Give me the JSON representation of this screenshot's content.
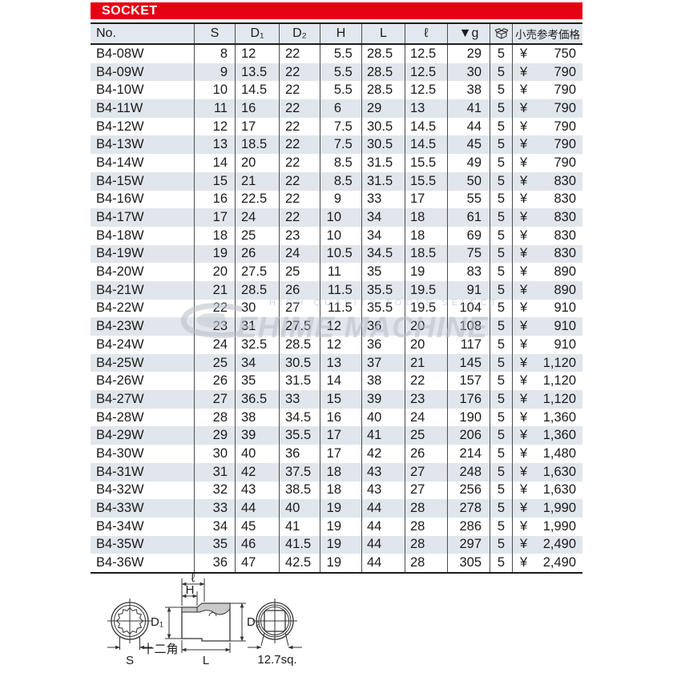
{
  "title_bar": {
    "label": "SOCKET"
  },
  "colors": {
    "accent_red": "#e60014",
    "row_shade": "#e0e6ec",
    "header_shade": "#e2e8ee"
  },
  "table": {
    "yen": "¥",
    "columns": [
      {
        "key": "no",
        "label": "No."
      },
      {
        "key": "s",
        "label": "S"
      },
      {
        "key": "d1",
        "label": "D₁"
      },
      {
        "key": "d2",
        "label": "D₂"
      },
      {
        "key": "h",
        "label": "H"
      },
      {
        "key": "l",
        "label": "L"
      },
      {
        "key": "ell",
        "label": "ℓ"
      },
      {
        "key": "g",
        "label": "▼g"
      },
      {
        "key": "qty",
        "label": "",
        "icon": "package-icon"
      },
      {
        "key": "price",
        "label": "小売参考価格"
      }
    ],
    "rows": [
      [
        "B4-08W",
        "8",
        "12",
        "22",
        "5.5",
        "28.5",
        "12.5",
        "29",
        "5",
        "750"
      ],
      [
        "B4-09W",
        "9",
        "13.5",
        "22",
        "5.5",
        "28.5",
        "12.5",
        "30",
        "5",
        "790"
      ],
      [
        "B4-10W",
        "10",
        "14.5",
        "22",
        "5.5",
        "28.5",
        "12.5",
        "38",
        "5",
        "790"
      ],
      [
        "B4-11W",
        "11",
        "16",
        "22",
        "6",
        "29",
        "13",
        "41",
        "5",
        "790"
      ],
      [
        "B4-12W",
        "12",
        "17",
        "22",
        "7.5",
        "30.5",
        "14.5",
        "44",
        "5",
        "790"
      ],
      [
        "B4-13W",
        "13",
        "18.5",
        "22",
        "7.5",
        "30.5",
        "14.5",
        "45",
        "5",
        "790"
      ],
      [
        "B4-14W",
        "14",
        "20",
        "22",
        "8.5",
        "31.5",
        "15.5",
        "49",
        "5",
        "790"
      ],
      [
        "B4-15W",
        "15",
        "21",
        "22",
        "8.5",
        "31.5",
        "15.5",
        "50",
        "5",
        "830"
      ],
      [
        "B4-16W",
        "16",
        "22.5",
        "22",
        "9",
        "33",
        "17",
        "55",
        "5",
        "830"
      ],
      [
        "B4-17W",
        "17",
        "24",
        "22",
        "10",
        "34",
        "18",
        "61",
        "5",
        "830"
      ],
      [
        "B4-18W",
        "18",
        "25",
        "23",
        "10",
        "34",
        "18",
        "69",
        "5",
        "830"
      ],
      [
        "B4-19W",
        "19",
        "26",
        "24",
        "10.5",
        "34.5",
        "18.5",
        "75",
        "5",
        "830"
      ],
      [
        "B4-20W",
        "20",
        "27.5",
        "25",
        "11",
        "35",
        "19",
        "83",
        "5",
        "890"
      ],
      [
        "B4-21W",
        "21",
        "28.5",
        "26",
        "11.5",
        "35.5",
        "19.5",
        "91",
        "5",
        "890"
      ],
      [
        "B4-22W",
        "22",
        "30",
        "27",
        "11.5",
        "35.5",
        "19.5",
        "104",
        "5",
        "910"
      ],
      [
        "B4-23W",
        "23",
        "31",
        "27.5",
        "12",
        "36",
        "20",
        "108",
        "5",
        "910"
      ],
      [
        "B4-24W",
        "24",
        "32.5",
        "28.5",
        "12",
        "36",
        "20",
        "117",
        "5",
        "910"
      ],
      [
        "B4-25W",
        "25",
        "34",
        "30.5",
        "13",
        "37",
        "21",
        "145",
        "5",
        "1,120"
      ],
      [
        "B4-26W",
        "26",
        "35",
        "31.5",
        "14",
        "38",
        "22",
        "157",
        "5",
        "1,120"
      ],
      [
        "B4-27W",
        "27",
        "36.5",
        "33",
        "15",
        "39",
        "23",
        "176",
        "5",
        "1,120"
      ],
      [
        "B4-28W",
        "28",
        "38",
        "34.5",
        "16",
        "40",
        "24",
        "190",
        "5",
        "1,360"
      ],
      [
        "B4-29W",
        "29",
        "39",
        "35.5",
        "17",
        "41",
        "25",
        "206",
        "5",
        "1,360"
      ],
      [
        "B4-30W",
        "30",
        "40",
        "36",
        "17",
        "42",
        "26",
        "214",
        "5",
        "1,480"
      ],
      [
        "B4-31W",
        "31",
        "42",
        "37.5",
        "18",
        "43",
        "27",
        "248",
        "5",
        "1,630"
      ],
      [
        "B4-32W",
        "32",
        "43",
        "38.5",
        "18",
        "43",
        "27",
        "256",
        "5",
        "1,630"
      ],
      [
        "B4-33W",
        "33",
        "44",
        "40",
        "19",
        "44",
        "28",
        "278",
        "5",
        "1,990"
      ],
      [
        "B4-34W",
        "34",
        "45",
        "41",
        "19",
        "44",
        "28",
        "286",
        "5",
        "1,990"
      ],
      [
        "B4-35W",
        "35",
        "46",
        "41.5",
        "19",
        "44",
        "28",
        "297",
        "5",
        "2,490"
      ],
      [
        "B4-36W",
        "36",
        "47",
        "42.5",
        "19",
        "44",
        "28",
        "305",
        "5",
        "2,490"
      ]
    ]
  },
  "watermark": {
    "small_text": "HIGH QUALITY TOOLS SELECT",
    "main_text": "EHIME MACHINE"
  },
  "diagram": {
    "ell": "ℓ",
    "h_label": "H",
    "d1": "D₁",
    "d2": "D₂",
    "s_label": "S",
    "l_label": "L",
    "drive_size": "12.7sq.",
    "socket_type": "十二角"
  }
}
